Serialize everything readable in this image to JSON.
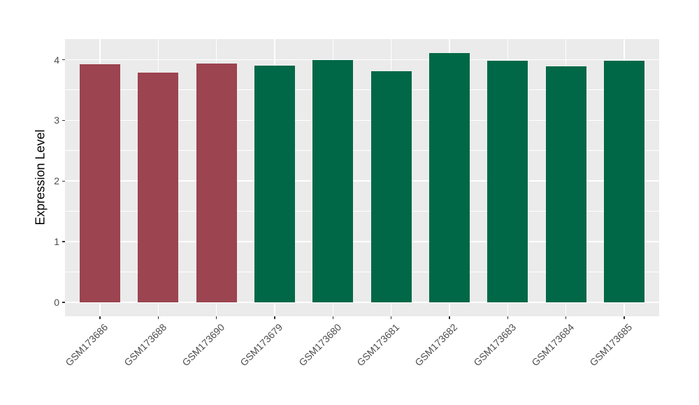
{
  "chart_data": {
    "type": "bar",
    "title": "",
    "xlabel": "",
    "ylabel": "Expression Level",
    "categories": [
      "GSM173686",
      "GSM173688",
      "GSM173690",
      "GSM173679",
      "GSM173680",
      "GSM173681",
      "GSM173682",
      "GSM173683",
      "GSM173684",
      "GSM173685"
    ],
    "values": [
      3.93,
      3.79,
      3.94,
      3.9,
      4.0,
      3.81,
      4.11,
      3.98,
      3.89,
      3.98
    ],
    "bar_colors": [
      "#9C4450",
      "#9C4450",
      "#9C4450",
      "#006847",
      "#006847",
      "#006847",
      "#006847",
      "#006847",
      "#006847",
      "#006847"
    ],
    "ylim": [
      -0.23,
      4.34
    ],
    "yticks": [
      0,
      1,
      2,
      3,
      4
    ],
    "yticks_minor": [
      0.5,
      1.5,
      2.5,
      3.5
    ],
    "x_tick_angle": 45,
    "grid": true,
    "legend": "none",
    "panel_background": "#EBEBEB",
    "grid_color": "#FFFFFF",
    "tick_label_color": "#4D4D4D",
    "tick_mark_color": "#333333",
    "axis_title_color": "#000000"
  }
}
